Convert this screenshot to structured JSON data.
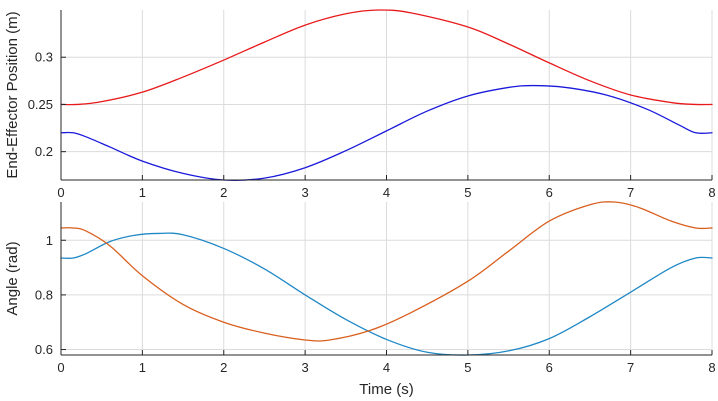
{
  "chart_data": [
    {
      "type": "line",
      "title": "",
      "xlabel": "",
      "ylabel": "End-Effector Position (m)",
      "xlim": [
        0,
        8
      ],
      "ylim": [
        0.17,
        0.35
      ],
      "grid": true,
      "xticks": [
        0,
        1,
        2,
        3,
        4,
        5,
        6,
        7,
        8
      ],
      "yticks": [
        0.2,
        0.25,
        0.3
      ],
      "xtick_labels": [
        "0",
        "1",
        "2",
        "3",
        "4",
        "5",
        "6",
        "7",
        "8"
      ],
      "ytick_labels": [
        "0.2",
        "0.25",
        "0.3"
      ],
      "series": [
        {
          "color": "#e8191b",
          "x": [
            0,
            0.2,
            0.5,
            1,
            1.5,
            2,
            2.5,
            3,
            3.5,
            3.9,
            4.3,
            5,
            5.5,
            6,
            6.5,
            7,
            7.5,
            7.8,
            8
          ],
          "y": [
            0.25,
            0.25,
            0.253,
            0.263,
            0.279,
            0.297,
            0.316,
            0.334,
            0.346,
            0.35,
            0.347,
            0.332,
            0.314,
            0.294,
            0.275,
            0.26,
            0.252,
            0.25,
            0.25
          ]
        },
        {
          "color": "#1a1adb",
          "x": [
            0,
            0.15,
            0.3,
            0.6,
            1,
            1.5,
            2,
            2.5,
            3,
            3.5,
            4,
            4.5,
            5,
            5.5,
            5.8,
            6.2,
            6.7,
            7.2,
            7.6,
            7.8,
            8
          ],
          "y": [
            0.22,
            0.22,
            0.216,
            0.205,
            0.19,
            0.177,
            0.17,
            0.172,
            0.183,
            0.201,
            0.222,
            0.243,
            0.259,
            0.268,
            0.27,
            0.268,
            0.26,
            0.245,
            0.228,
            0.22,
            0.22
          ]
        }
      ]
    },
    {
      "type": "line",
      "title": "",
      "xlabel": "Time (s)",
      "ylabel": "Angle (rad)",
      "xlim": [
        0,
        8
      ],
      "ylim": [
        0.58,
        1.14
      ],
      "grid": true,
      "xticks": [
        0,
        1,
        2,
        3,
        4,
        5,
        6,
        7,
        8
      ],
      "yticks": [
        0.6,
        0.8,
        1.0
      ],
      "xtick_labels": [
        "0",
        "1",
        "2",
        "3",
        "4",
        "5",
        "6",
        "7",
        "8"
      ],
      "ytick_labels": [
        "0.6",
        "0.8",
        "1"
      ],
      "series": [
        {
          "color": "#1f88c6",
          "x": [
            0,
            0.15,
            0.3,
            0.6,
            0.9,
            1.2,
            1.5,
            2,
            2.5,
            3,
            3.5,
            4,
            4.5,
            5,
            5.5,
            6,
            6.5,
            7,
            7.5,
            7.8,
            8
          ],
          "y": [
            0.935,
            0.935,
            0.95,
            0.995,
            1.018,
            1.025,
            1.02,
            0.97,
            0.895,
            0.8,
            0.71,
            0.637,
            0.59,
            0.58,
            0.595,
            0.64,
            0.72,
            0.81,
            0.9,
            0.935,
            0.935
          ]
        },
        {
          "color": "#d95f1e",
          "x": [
            0,
            0.15,
            0.3,
            0.6,
            1,
            1.5,
            2,
            2.5,
            3,
            3.3,
            3.8,
            4.3,
            5,
            5.5,
            6,
            6.5,
            6.8,
            7.1,
            7.5,
            7.8,
            8
          ],
          "y": [
            1.045,
            1.045,
            1.035,
            0.98,
            0.87,
            0.765,
            0.7,
            0.66,
            0.635,
            0.635,
            0.67,
            0.735,
            0.85,
            0.96,
            1.07,
            1.13,
            1.14,
            1.12,
            1.07,
            1.045,
            1.045
          ]
        }
      ]
    }
  ]
}
